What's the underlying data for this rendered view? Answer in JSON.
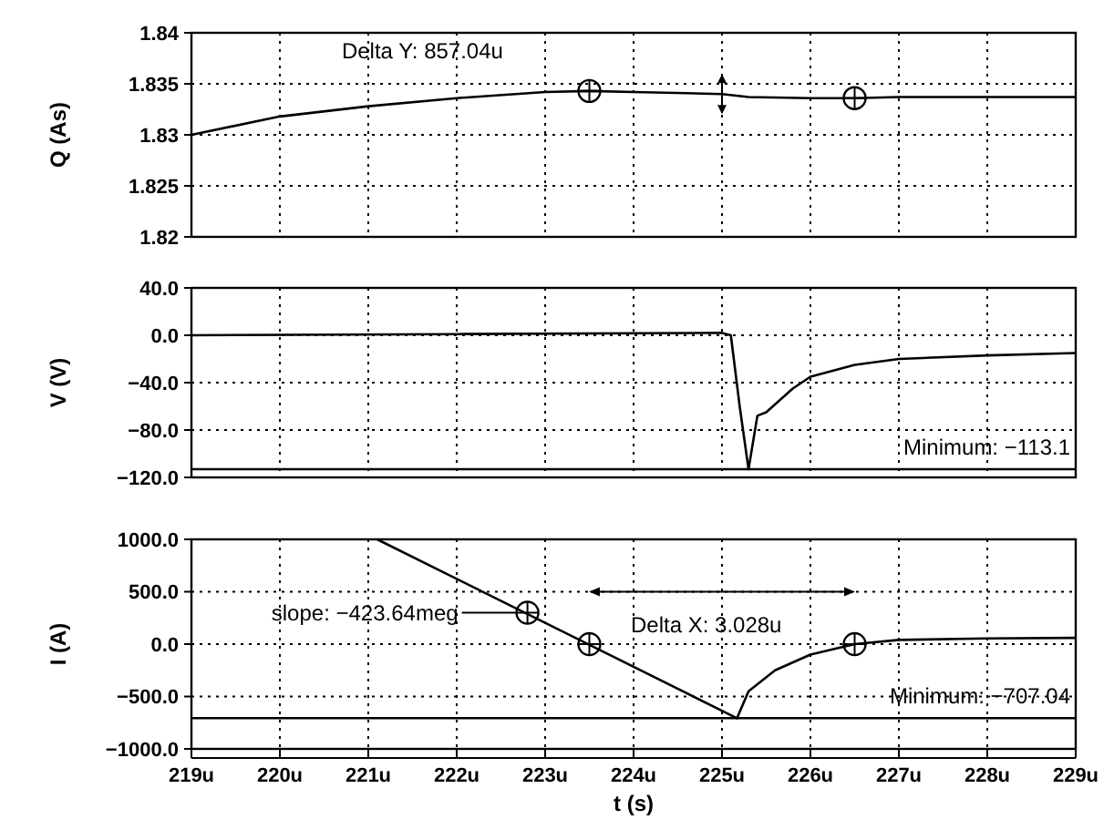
{
  "chart_data": [
    {
      "type": "line",
      "ylabel": "Q (As)",
      "xlim": [
        219,
        229
      ],
      "xticks": [
        {
          "value": 219,
          "label": null
        },
        {
          "value": 220,
          "label": null
        },
        {
          "value": 221,
          "label": null
        },
        {
          "value": 222,
          "label": null
        },
        {
          "value": 223,
          "label": null
        },
        {
          "value": 224,
          "label": null
        },
        {
          "value": 225,
          "label": null
        },
        {
          "value": 226,
          "label": null
        },
        {
          "value": 227,
          "label": null
        },
        {
          "value": 228,
          "label": null
        },
        {
          "value": 229,
          "label": null
        }
      ],
      "ylim": [
        1.82,
        1.84
      ],
      "yticks": [
        1.82,
        1.825,
        1.83,
        1.835,
        1.84
      ],
      "grid": true,
      "tick_labels": "y",
      "series": [
        {
          "color": "#000000",
          "x": [
            219,
            220,
            221,
            222,
            223,
            223.5,
            224,
            225,
            225.3,
            226,
            226.5,
            227,
            228,
            229
          ],
          "values": [
            1.83,
            1.8318,
            1.8328,
            1.8336,
            1.8342,
            1.8343,
            1.8342,
            1.834,
            1.8337,
            1.8336,
            1.8336,
            1.8337,
            1.8337,
            1.8337
          ]
        },
        {
          "type": "scatter",
          "marker": "circle",
          "color": "#000000",
          "x": [
            223.5,
            226.5
          ],
          "values": [
            1.8343,
            1.8336
          ]
        }
      ],
      "annotations": [
        "Delta Y: 857.04u"
      ]
    },
    {
      "type": "line",
      "ylabel": "V (V)",
      "xlim": [
        219,
        229
      ],
      "xticks": [
        {
          "value": 219,
          "label": null
        },
        {
          "value": 220,
          "label": null
        },
        {
          "value": 221,
          "label": null
        },
        {
          "value": 222,
          "label": null
        },
        {
          "value": 223,
          "label": null
        },
        {
          "value": 224,
          "label": null
        },
        {
          "value": 225,
          "label": null
        },
        {
          "value": 226,
          "label": null
        },
        {
          "value": 227,
          "label": null
        },
        {
          "value": 228,
          "label": null
        },
        {
          "value": 229,
          "label": null
        }
      ],
      "ylim": [
        -120,
        40
      ],
      "yticks": [
        {
          "value": -120,
          "label": "−120.0"
        },
        {
          "value": -80,
          "label": "−80.0"
        },
        {
          "value": -40,
          "label": "−40.0"
        },
        {
          "value": 0,
          "label": "0.0"
        },
        {
          "value": 40,
          "label": "40.0"
        }
      ],
      "grid": true,
      "tick_labels": "y",
      "series": [
        {
          "color": "#000000",
          "x": [
            219,
            222,
            225,
            225.1,
            225.2,
            225.3,
            225.4,
            225.5,
            225.8,
            226,
            226.5,
            227,
            228,
            229
          ],
          "values": [
            0,
            1,
            2,
            0,
            -60,
            -113.1,
            -68,
            -65,
            -45,
            -35,
            -25,
            -20,
            -17,
            -15
          ]
        }
      ],
      "ref_lines": [
        {
          "axis": "y",
          "value": -113.1,
          "label": "Minimum: −113.1"
        }
      ]
    },
    {
      "type": "line",
      "ylabel": "I (A)",
      "xlabel": "t (s)",
      "xlim": [
        219,
        229
      ],
      "xticks": [
        {
          "value": 219,
          "label": "219u"
        },
        {
          "value": 220,
          "label": "220u"
        },
        {
          "value": 221,
          "label": "221u"
        },
        {
          "value": 222,
          "label": "222u"
        },
        {
          "value": 223,
          "label": "223u"
        },
        {
          "value": 224,
          "label": "224u"
        },
        {
          "value": 225,
          "label": "225u"
        },
        {
          "value": 226,
          "label": "226u"
        },
        {
          "value": 227,
          "label": "227u"
        },
        {
          "value": 228,
          "label": "228u"
        },
        {
          "value": 229,
          "label": "229u"
        }
      ],
      "ylim": [
        -1000,
        1000
      ],
      "yticks": [
        {
          "value": -1000,
          "label": "−1000.0"
        },
        {
          "value": -500,
          "label": "−500.0"
        },
        {
          "value": 0,
          "label": "0.0"
        },
        {
          "value": 500,
          "label": "500.0"
        },
        {
          "value": 1000,
          "label": "1000.0"
        }
      ],
      "grid": true,
      "series": [
        {
          "color": "#000000",
          "x": [
            221.1,
            225.17,
            225.3,
            225.6,
            226,
            226.5,
            227,
            228,
            229
          ],
          "values": [
            1000,
            -707.04,
            -450,
            -250,
            -100,
            0,
            40,
            55,
            60
          ]
        },
        {
          "type": "scatter",
          "marker": "circle",
          "color": "#000000",
          "x": [
            222.8,
            223.5,
            226.5
          ],
          "values": [
            300,
            0,
            0
          ]
        }
      ],
      "ref_lines": [
        {
          "axis": "y",
          "value": -707.04,
          "label": "Minimum: −707.04"
        }
      ],
      "annotations": [
        "slope: −423.64meg",
        "Delta X: 3.028u"
      ]
    }
  ]
}
